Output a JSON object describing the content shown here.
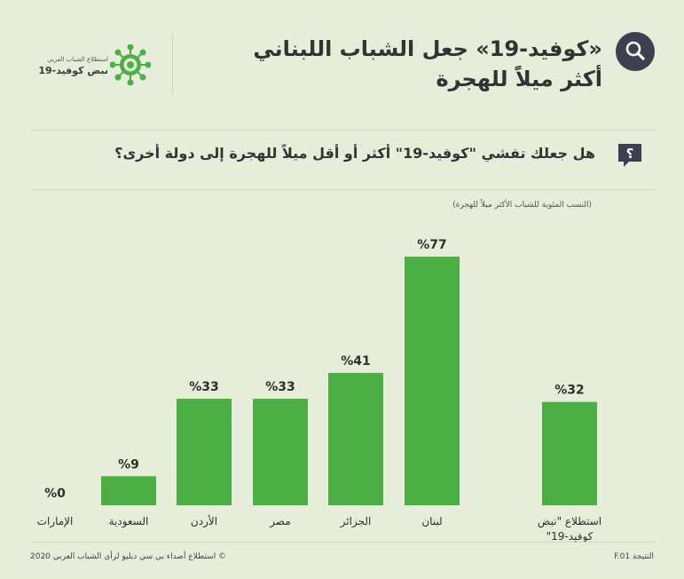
{
  "header": {
    "title_line1": "«كوفيد-19» جعل الشباب اللبناني",
    "title_line2": "أكثر ميلاً للهجرة",
    "logo_small": "استطلاع الشباب العربي",
    "logo_big": "نبض كوفيد-19"
  },
  "question": "هل جعلك تفشي \"كوفيد-19\" أكثر أو أقل ميلاً للهجرة إلى دولة أخرى؟",
  "footer": {
    "left": "© استطلاع أصداء بي سي دبليو لرأي الشباب العربي 2020",
    "right": "النتيجة F.01"
  },
  "colors": {
    "background": "#e6eed9",
    "bar": "#4caf43",
    "icon": "#3f3f52"
  },
  "chart_data": {
    "type": "bar",
    "subtitle": "(النسب المئوية للشباب الأكثر ميلاً للهجرة)",
    "unit": "%",
    "categories": [
      "الإمارات",
      "السعودية",
      "الأردن",
      "مصر",
      "الجزائر",
      "لبنان",
      "استطلاع \"نبض كوفيد-19\""
    ],
    "values": [
      0,
      9,
      33,
      33,
      41,
      77,
      32
    ],
    "value_labels": [
      "%0",
      "%9",
      "%33",
      "%33",
      "%41",
      "%77",
      "%32"
    ],
    "category_labels": [
      [
        "الإمارات"
      ],
      [
        "السعودية"
      ],
      [
        "الأردن"
      ],
      [
        "مصر"
      ],
      [
        "الجزائر"
      ],
      [
        "لبنان"
      ],
      [
        "استطلاع \"نبض",
        "كوفيد-19\""
      ]
    ],
    "ylim": [
      0,
      77
    ],
    "grid": false,
    "legend": "none"
  }
}
